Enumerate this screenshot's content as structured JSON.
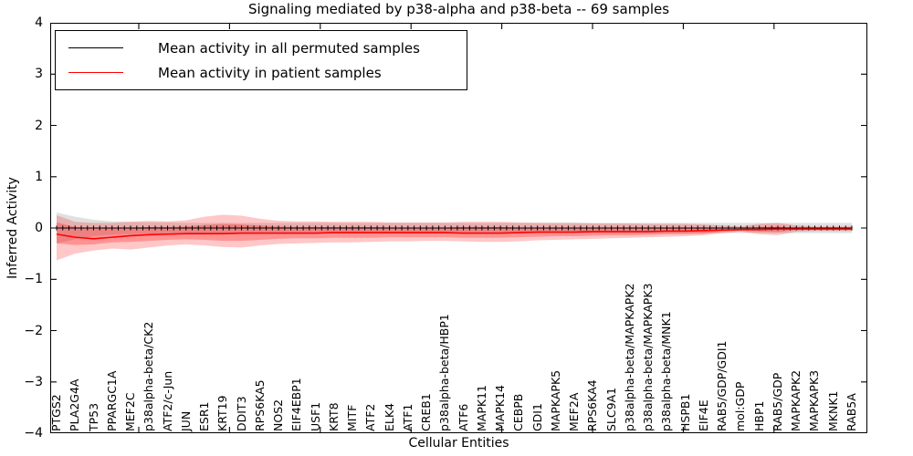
{
  "chart_data": {
    "type": "line",
    "title": "Signaling mediated by p38-alpha and p38-beta -- 69 samples",
    "xlabel": "Cellular Entities",
    "ylabel": "Inferred Activity",
    "ylim": [
      -4,
      4
    ],
    "ytick_labels": [
      "4",
      "3",
      "2",
      "1",
      "0",
      "−1",
      "−2",
      "−3",
      "−4"
    ],
    "grid": false,
    "legend_position": "upper left",
    "categories": [
      "PTGS2",
      "PLA2G4A",
      "TP53",
      "PPARGC1A",
      "MEF2C",
      "p38alpha-beta/CK2",
      "ATF2/c-Jun",
      "JUN",
      "ESR1",
      "KRT19",
      "DDIT3",
      "RPS6KA5",
      "NOS2",
      "EIF4EBP1",
      "USF1",
      "KRT8",
      "MITF",
      "ATF2",
      "ELK4",
      "ATF1",
      "CREB1",
      "p38alpha-beta/HBP1",
      "ATF6",
      "MAPK11",
      "MAPK14",
      "CEBPB",
      "GDI1",
      "MAPKAPK5",
      "MEF2A",
      "RPS6KA4",
      "SLC9A1",
      "p38alpha-beta/MAPKAPK2",
      "p38alpha-beta/MAPKAPK3",
      "p38alpha-beta/MNK1",
      "HSPB1",
      "EIF4E",
      "RAB5/GDP/GDI1",
      "mol:GDP",
      "HBP1",
      "RAB5/GDP",
      "MAPKAPK2",
      "MAPKAPK3",
      "MKNK1",
      "RAB5A"
    ],
    "series": [
      {
        "name": "Mean activity in all permuted samples",
        "color": "#000000",
        "marker": "vertical-tick",
        "values": [
          0,
          0,
          0,
          0,
          0,
          0,
          0,
          0,
          0,
          0,
          0,
          0,
          0,
          0,
          0,
          0,
          0,
          0,
          0,
          0,
          0,
          0,
          0,
          0,
          0,
          0,
          0,
          0,
          0,
          0,
          0,
          0,
          0,
          0,
          0,
          0,
          0,
          0,
          0,
          0,
          0,
          0,
          0,
          0
        ]
      },
      {
        "name": "Mean activity in patient samples",
        "color": "#ff0000",
        "marker": "none",
        "values": [
          -0.12,
          -0.18,
          -0.21,
          -0.18,
          -0.15,
          -0.13,
          -0.12,
          -0.11,
          -0.11,
          -0.11,
          -0.1,
          -0.1,
          -0.1,
          -0.1,
          -0.1,
          -0.09,
          -0.09,
          -0.09,
          -0.09,
          -0.09,
          -0.09,
          -0.09,
          -0.1,
          -0.1,
          -0.1,
          -0.09,
          -0.08,
          -0.08,
          -0.08,
          -0.07,
          -0.07,
          -0.07,
          -0.07,
          -0.06,
          -0.06,
          -0.05,
          -0.04,
          -0.03,
          -0.03,
          -0.02,
          -0.02,
          -0.02,
          -0.02,
          -0.02
        ]
      }
    ],
    "bands": [
      {
        "name": "permuted-sample-range",
        "color": "#999999",
        "opacity": 0.3,
        "upper": [
          0.3,
          0.22,
          0.16,
          0.13,
          0.12,
          0.11,
          0.11,
          0.1,
          0.1,
          0.1,
          0.1,
          0.1,
          0.1,
          0.1,
          0.1,
          0.1,
          0.1,
          0.1,
          0.1,
          0.1,
          0.1,
          0.1,
          0.1,
          0.1,
          0.1,
          0.1,
          0.1,
          0.1,
          0.1,
          0.1,
          0.1,
          0.1,
          0.1,
          0.1,
          0.1,
          0.1,
          0.1,
          0.1,
          0.1,
          0.1,
          0.1,
          0.1,
          0.1,
          0.1
        ],
        "lower": [
          -0.3,
          -0.22,
          -0.16,
          -0.13,
          -0.12,
          -0.11,
          -0.11,
          -0.1,
          -0.1,
          -0.1,
          -0.1,
          -0.1,
          -0.1,
          -0.1,
          -0.1,
          -0.1,
          -0.1,
          -0.1,
          -0.1,
          -0.1,
          -0.1,
          -0.1,
          -0.1,
          -0.1,
          -0.1,
          -0.1,
          -0.1,
          -0.1,
          -0.1,
          -0.1,
          -0.1,
          -0.1,
          -0.1,
          -0.1,
          -0.1,
          -0.1,
          -0.1,
          -0.1,
          -0.1,
          -0.1,
          -0.1,
          -0.1,
          -0.1,
          -0.1
        ]
      },
      {
        "name": "patient-outer-band",
        "color": "#ff0000",
        "opacity": 0.22,
        "upper": [
          0.25,
          0.12,
          0.1,
          0.1,
          0.12,
          0.14,
          0.13,
          0.15,
          0.22,
          0.26,
          0.24,
          0.18,
          0.14,
          0.13,
          0.13,
          0.12,
          0.12,
          0.12,
          0.11,
          0.11,
          0.11,
          0.11,
          0.12,
          0.12,
          0.12,
          0.11,
          0.1,
          0.1,
          0.1,
          0.09,
          0.09,
          0.09,
          0.08,
          0.08,
          0.08,
          0.07,
          0.05,
          0.03,
          0.08,
          0.1,
          0.05,
          0.03,
          0.03,
          0.03
        ],
        "lower": [
          -0.63,
          -0.5,
          -0.44,
          -0.4,
          -0.42,
          -0.38,
          -0.34,
          -0.32,
          -0.34,
          -0.37,
          -0.38,
          -0.34,
          -0.31,
          -0.3,
          -0.29,
          -0.28,
          -0.28,
          -0.27,
          -0.26,
          -0.26,
          -0.25,
          -0.25,
          -0.26,
          -0.27,
          -0.27,
          -0.26,
          -0.24,
          -0.23,
          -0.22,
          -0.21,
          -0.2,
          -0.19,
          -0.18,
          -0.17,
          -0.16,
          -0.14,
          -0.1,
          -0.07,
          -0.12,
          -0.14,
          -0.07,
          -0.06,
          -0.06,
          -0.06
        ]
      },
      {
        "name": "patient-inner-band",
        "color": "#ff0000",
        "opacity": 0.26,
        "upper": [
          0.11,
          0.02,
          0.0,
          0.0,
          0.01,
          0.02,
          0.02,
          0.03,
          0.06,
          0.08,
          0.07,
          0.05,
          0.03,
          0.02,
          0.02,
          0.02,
          0.02,
          0.02,
          0.01,
          0.01,
          0.01,
          0.01,
          0.02,
          0.02,
          0.02,
          0.01,
          0.01,
          0.01,
          0.01,
          0.01,
          0.01,
          0.01,
          0.0,
          0.0,
          0.0,
          0.0,
          -0.01,
          -0.01,
          0.02,
          0.03,
          0.0,
          0.0,
          0.0,
          0.0
        ],
        "lower": [
          -0.3,
          -0.33,
          -0.32,
          -0.28,
          -0.27,
          -0.25,
          -0.23,
          -0.22,
          -0.23,
          -0.25,
          -0.25,
          -0.23,
          -0.21,
          -0.2,
          -0.2,
          -0.19,
          -0.19,
          -0.19,
          -0.18,
          -0.18,
          -0.18,
          -0.18,
          -0.19,
          -0.19,
          -0.19,
          -0.18,
          -0.17,
          -0.16,
          -0.16,
          -0.15,
          -0.14,
          -0.14,
          -0.13,
          -0.12,
          -0.12,
          -0.11,
          -0.07,
          -0.05,
          -0.07,
          -0.08,
          -0.04,
          -0.04,
          -0.04,
          -0.04
        ]
      }
    ]
  }
}
